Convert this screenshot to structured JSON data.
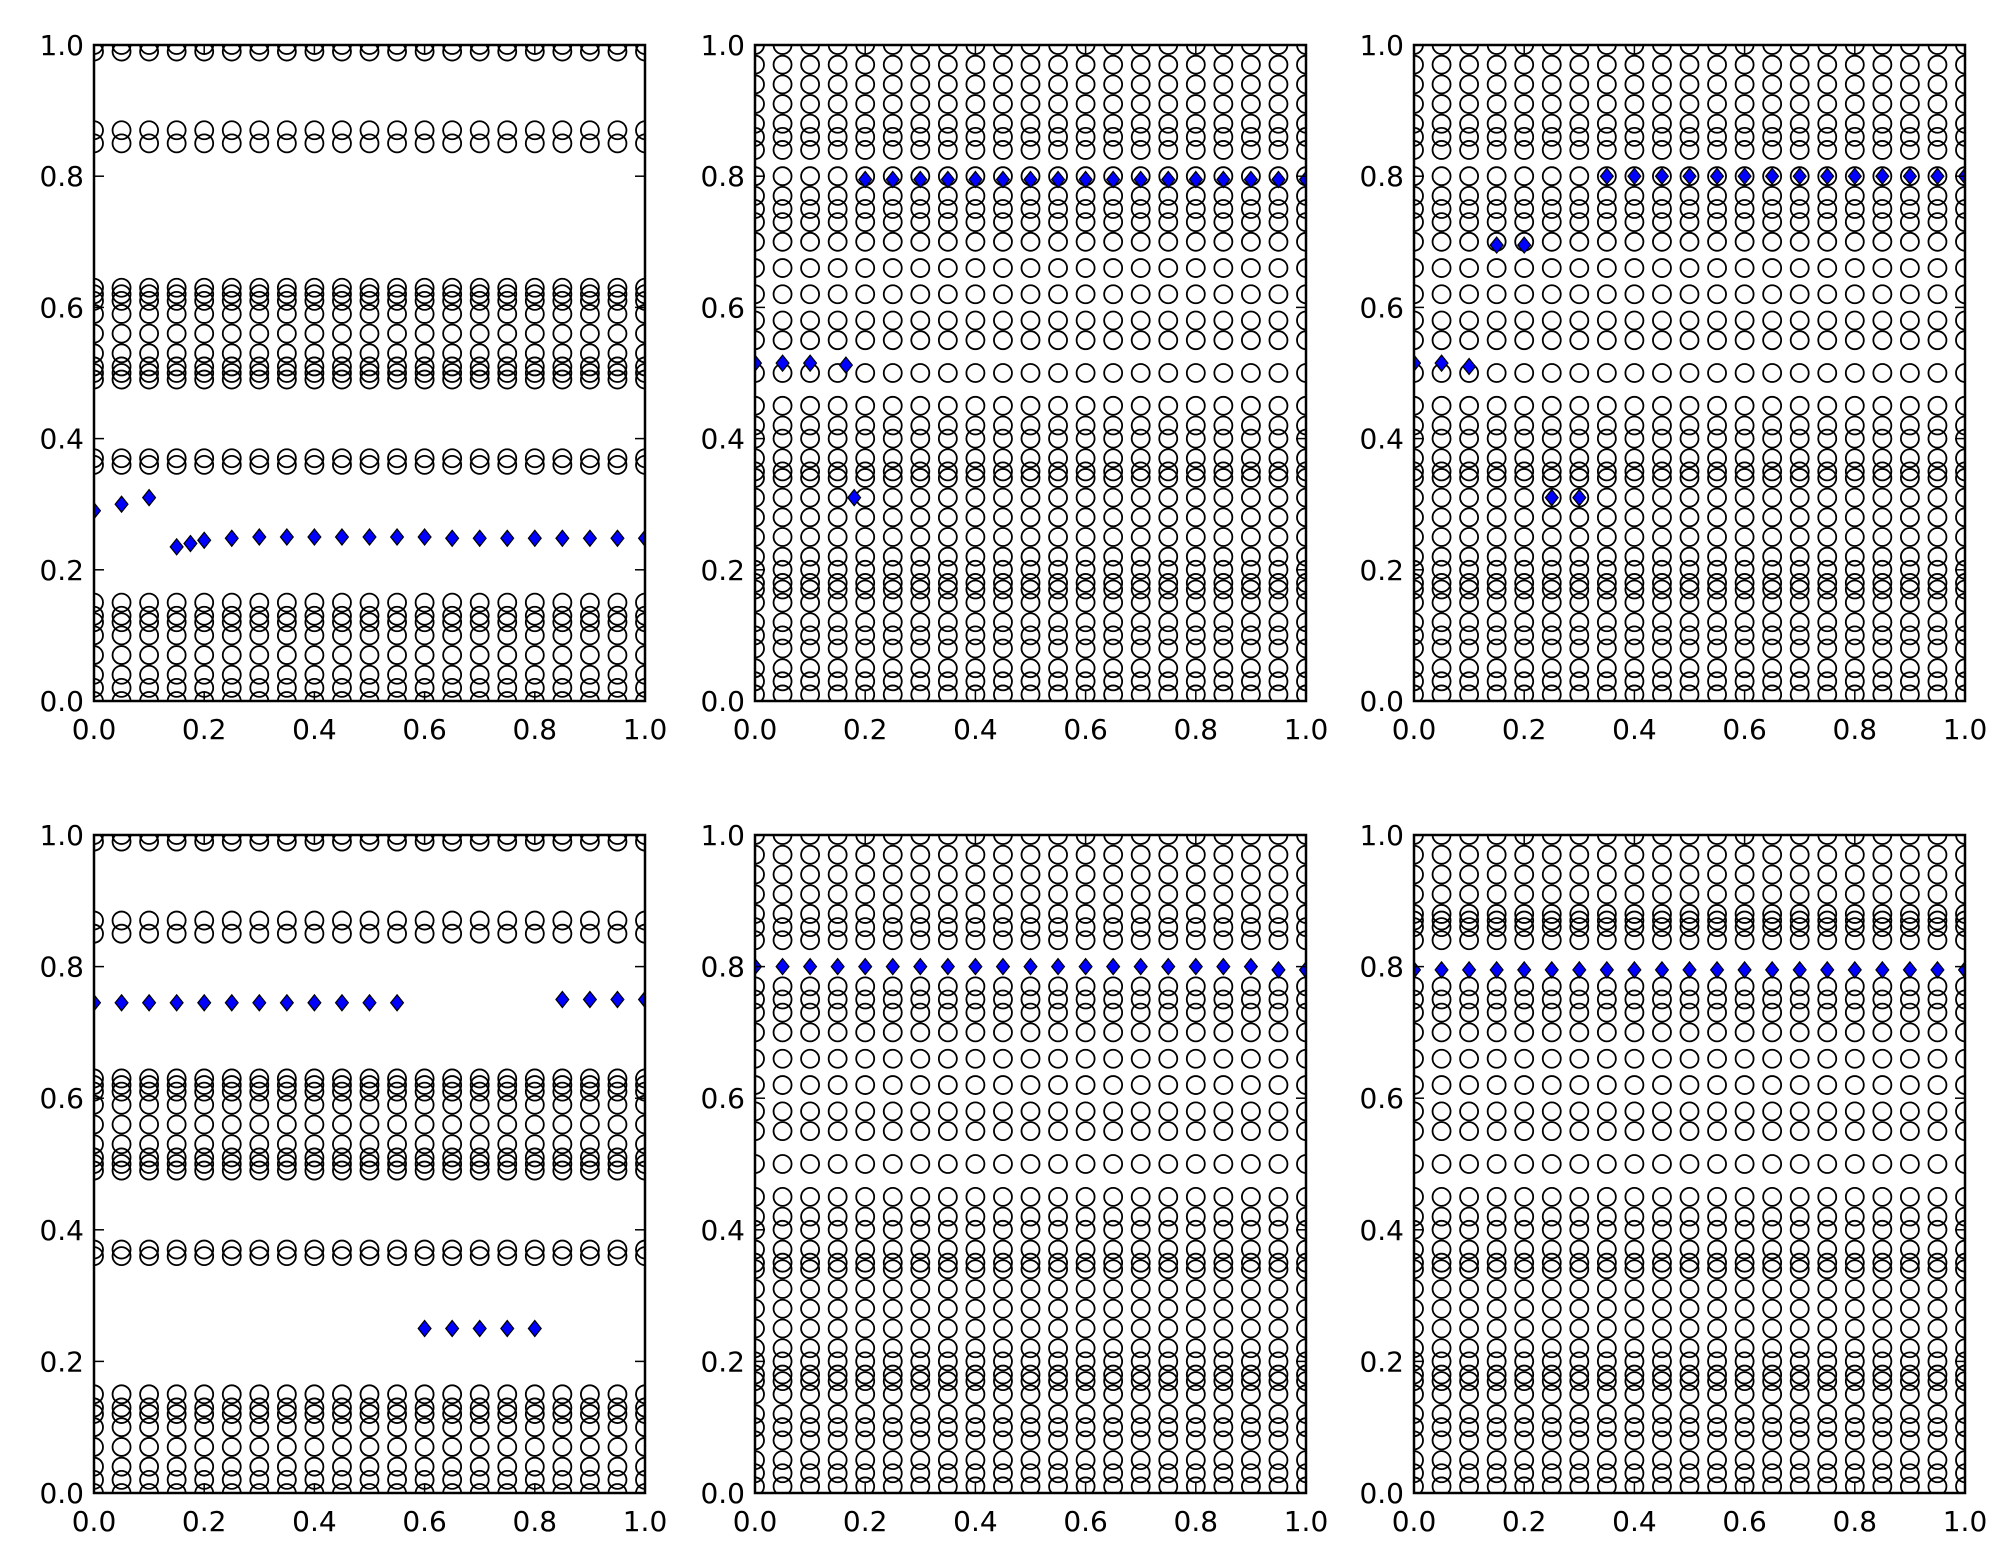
{
  "chart_data": [
    {
      "type": "scatter",
      "circle_color": "#000000",
      "x": [
        0,
        0.05,
        0.1,
        0.15,
        0.2,
        0.25,
        0.3,
        0.35,
        0.4,
        0.45,
        0.5,
        0.55,
        0.6,
        0.65,
        0.7,
        0.75,
        0.8,
        0.85,
        0.9,
        0.95,
        1.0
      ],
      "levels": [
        0.0,
        0.02,
        0.04,
        0.07,
        0.1,
        0.12,
        0.13,
        0.15,
        0.36,
        0.37,
        0.49,
        0.5,
        0.51,
        0.53,
        0.56,
        0.59,
        0.61,
        0.62,
        0.63,
        0.85,
        0.87,
        0.99,
        1.0
      ],
      "markers": {
        "color": "#0000ff",
        "x": [
          0,
          0.05,
          0.1,
          0.15,
          0.175,
          0.2,
          0.25,
          0.3,
          0.35,
          0.4,
          0.45,
          0.5,
          0.55,
          0.6,
          0.65,
          0.7,
          0.75,
          0.8,
          0.85,
          0.9,
          0.95,
          1.0
        ],
        "values": [
          0.29,
          0.3,
          0.31,
          0.235,
          0.24,
          0.245,
          0.248,
          0.25,
          0.25,
          0.25,
          0.25,
          0.25,
          0.25,
          0.25,
          0.248,
          0.248,
          0.248,
          0.248,
          0.248,
          0.248,
          0.248,
          0.248
        ]
      },
      "xlim": [
        0,
        1
      ],
      "ylim": [
        0,
        1
      ],
      "xticks": [
        {
          "value": 0,
          "label": "0.0"
        },
        0.2,
        0.4,
        0.6,
        0.8,
        {
          "value": 1,
          "label": "1.0"
        }
      ],
      "yticks": [
        {
          "value": 0,
          "label": "0.0"
        },
        0.2,
        0.4,
        0.6,
        0.8,
        {
          "value": 1,
          "label": "1.0"
        }
      ]
    },
    {
      "type": "scatter",
      "circle_color": "#000000",
      "x": [
        0,
        0.05,
        0.1,
        0.15,
        0.2,
        0.25,
        0.3,
        0.35,
        0.4,
        0.45,
        0.5,
        0.55,
        0.6,
        0.65,
        0.7,
        0.75,
        0.8,
        0.85,
        0.9,
        0.95,
        1.0
      ],
      "levels": [
        0.01,
        0.03,
        0.05,
        0.08,
        0.1,
        0.12,
        0.15,
        0.17,
        0.18,
        0.2,
        0.22,
        0.25,
        0.28,
        0.31,
        0.34,
        0.35,
        0.37,
        0.4,
        0.42,
        0.45,
        0.5,
        0.55,
        0.58,
        0.62,
        0.66,
        0.7,
        0.73,
        0.75,
        0.77,
        0.8,
        0.84,
        0.86,
        0.88,
        0.91,
        0.94,
        0.97,
        1.0
      ],
      "markers": {
        "color": "#0000ff",
        "x": [
          0,
          0.05,
          0.1,
          0.165,
          0.18,
          0.2,
          0.25,
          0.3,
          0.35,
          0.4,
          0.45,
          0.5,
          0.55,
          0.6,
          0.65,
          0.7,
          0.75,
          0.8,
          0.85,
          0.9,
          0.95,
          1.0
        ],
        "values": [
          0.515,
          0.515,
          0.515,
          0.512,
          0.31,
          0.795,
          0.795,
          0.795,
          0.795,
          0.795,
          0.795,
          0.795,
          0.795,
          0.795,
          0.795,
          0.795,
          0.795,
          0.795,
          0.795,
          0.795,
          0.795,
          0.795
        ]
      },
      "xlim": [
        0,
        1
      ],
      "ylim": [
        0,
        1
      ],
      "xticks": [
        {
          "value": 0,
          "label": "0.0"
        },
        0.2,
        0.4,
        0.6,
        0.8,
        {
          "value": 1,
          "label": "1.0"
        }
      ],
      "yticks": [
        {
          "value": 0,
          "label": "0.0"
        },
        0.2,
        0.4,
        0.6,
        0.8,
        {
          "value": 1,
          "label": "1.0"
        }
      ]
    },
    {
      "type": "scatter",
      "circle_color": "#000000",
      "x": [
        0,
        0.05,
        0.1,
        0.15,
        0.2,
        0.25,
        0.3,
        0.35,
        0.4,
        0.45,
        0.5,
        0.55,
        0.6,
        0.65,
        0.7,
        0.75,
        0.8,
        0.85,
        0.9,
        0.95,
        1.0
      ],
      "levels": [
        0.01,
        0.03,
        0.05,
        0.08,
        0.1,
        0.12,
        0.15,
        0.17,
        0.18,
        0.2,
        0.22,
        0.25,
        0.28,
        0.31,
        0.34,
        0.35,
        0.37,
        0.4,
        0.42,
        0.45,
        0.5,
        0.55,
        0.58,
        0.62,
        0.66,
        0.7,
        0.73,
        0.75,
        0.77,
        0.8,
        0.84,
        0.86,
        0.88,
        0.91,
        0.94,
        0.97,
        1.0
      ],
      "markers": {
        "color": "#0000ff",
        "x": [
          0,
          0.05,
          0.1,
          0.15,
          0.2,
          0.25,
          0.3,
          0.35,
          0.4,
          0.45,
          0.5,
          0.55,
          0.6,
          0.65,
          0.7,
          0.75,
          0.8,
          0.85,
          0.9,
          0.95,
          1.0
        ],
        "values": [
          0.515,
          0.515,
          0.51,
          0.695,
          0.695,
          0.31,
          0.31,
          0.8,
          0.8,
          0.8,
          0.8,
          0.8,
          0.8,
          0.8,
          0.8,
          0.8,
          0.8,
          0.8,
          0.8,
          0.8,
          0.8
        ]
      },
      "xlim": [
        0,
        1
      ],
      "ylim": [
        0,
        1
      ],
      "xticks": [
        {
          "value": 0,
          "label": "0.0"
        },
        0.2,
        0.4,
        0.6,
        0.8,
        {
          "value": 1,
          "label": "1.0"
        }
      ],
      "yticks": [
        {
          "value": 0,
          "label": "0.0"
        },
        0.2,
        0.4,
        0.6,
        0.8,
        {
          "value": 1,
          "label": "1.0"
        }
      ]
    },
    {
      "type": "scatter",
      "circle_color": "#000000",
      "x": [
        0,
        0.05,
        0.1,
        0.15,
        0.2,
        0.25,
        0.3,
        0.35,
        0.4,
        0.45,
        0.5,
        0.55,
        0.6,
        0.65,
        0.7,
        0.75,
        0.8,
        0.85,
        0.9,
        0.95,
        1.0
      ],
      "levels": [
        0.0,
        0.02,
        0.04,
        0.07,
        0.1,
        0.12,
        0.13,
        0.15,
        0.36,
        0.37,
        0.49,
        0.5,
        0.51,
        0.53,
        0.56,
        0.59,
        0.61,
        0.62,
        0.63,
        0.85,
        0.87,
        0.99,
        1.0
      ],
      "markers": {
        "color": "#0000ff",
        "x": [
          0,
          0.05,
          0.1,
          0.15,
          0.2,
          0.25,
          0.3,
          0.35,
          0.4,
          0.45,
          0.5,
          0.55,
          0.6,
          0.65,
          0.7,
          0.75,
          0.8,
          0.85,
          0.9,
          0.95,
          1.0
        ],
        "values": [
          0.745,
          0.745,
          0.745,
          0.745,
          0.745,
          0.745,
          0.745,
          0.745,
          0.745,
          0.745,
          0.745,
          0.745,
          0.25,
          0.25,
          0.25,
          0.25,
          0.25,
          0.75,
          0.75,
          0.75,
          0.75
        ]
      },
      "xlim": [
        0,
        1
      ],
      "ylim": [
        0,
        1
      ],
      "xticks": [
        {
          "value": 0,
          "label": "0.0"
        },
        0.2,
        0.4,
        0.6,
        0.8,
        {
          "value": 1,
          "label": "1.0"
        }
      ],
      "yticks": [
        {
          "value": 0,
          "label": "0.0"
        },
        0.2,
        0.4,
        0.6,
        0.8,
        {
          "value": 1,
          "label": "1.0"
        }
      ]
    },
    {
      "type": "scatter",
      "circle_color": "#000000",
      "x": [
        0,
        0.05,
        0.1,
        0.15,
        0.2,
        0.25,
        0.3,
        0.35,
        0.4,
        0.45,
        0.5,
        0.55,
        0.6,
        0.65,
        0.7,
        0.75,
        0.8,
        0.85,
        0.9,
        0.95,
        1.0
      ],
      "levels": [
        0.01,
        0.03,
        0.05,
        0.08,
        0.1,
        0.12,
        0.15,
        0.17,
        0.18,
        0.2,
        0.22,
        0.25,
        0.28,
        0.31,
        0.34,
        0.35,
        0.37,
        0.4,
        0.42,
        0.45,
        0.5,
        0.55,
        0.58,
        0.62,
        0.66,
        0.7,
        0.73,
        0.75,
        0.77,
        0.84,
        0.86,
        0.88,
        0.91,
        0.94,
        0.97,
        1.0
      ],
      "markers": {
        "color": "#0000ff",
        "x": [
          0,
          0.05,
          0.1,
          0.15,
          0.2,
          0.25,
          0.3,
          0.35,
          0.4,
          0.45,
          0.5,
          0.55,
          0.6,
          0.65,
          0.7,
          0.75,
          0.8,
          0.85,
          0.9,
          0.95,
          1.0
        ],
        "values": [
          0.8,
          0.8,
          0.8,
          0.8,
          0.8,
          0.8,
          0.8,
          0.8,
          0.8,
          0.8,
          0.8,
          0.8,
          0.8,
          0.8,
          0.8,
          0.8,
          0.8,
          0.8,
          0.8,
          0.795,
          0.795
        ]
      },
      "xlim": [
        0,
        1
      ],
      "ylim": [
        0,
        1
      ],
      "xticks": [
        {
          "value": 0,
          "label": "0.0"
        },
        0.2,
        0.4,
        0.6,
        0.8,
        {
          "value": 1,
          "label": "1.0"
        }
      ],
      "yticks": [
        {
          "value": 0,
          "label": "0.0"
        },
        0.2,
        0.4,
        0.6,
        0.8,
        {
          "value": 1,
          "label": "1.0"
        }
      ]
    },
    {
      "type": "scatter",
      "circle_color": "#000000",
      "x": [
        0,
        0.05,
        0.1,
        0.15,
        0.2,
        0.25,
        0.3,
        0.35,
        0.4,
        0.45,
        0.5,
        0.55,
        0.6,
        0.65,
        0.7,
        0.75,
        0.8,
        0.85,
        0.9,
        0.95,
        1.0
      ],
      "levels": [
        0.01,
        0.03,
        0.05,
        0.08,
        0.1,
        0.12,
        0.15,
        0.17,
        0.18,
        0.2,
        0.22,
        0.25,
        0.28,
        0.31,
        0.34,
        0.35,
        0.37,
        0.4,
        0.42,
        0.45,
        0.5,
        0.55,
        0.58,
        0.62,
        0.66,
        0.7,
        0.73,
        0.75,
        0.77,
        0.84,
        0.86,
        0.87,
        0.88,
        0.91,
        0.94,
        0.97,
        1.0
      ],
      "markers": {
        "color": "#0000ff",
        "x": [
          0,
          0.05,
          0.1,
          0.15,
          0.2,
          0.25,
          0.3,
          0.35,
          0.4,
          0.45,
          0.5,
          0.55,
          0.6,
          0.65,
          0.7,
          0.75,
          0.8,
          0.85,
          0.9,
          0.95,
          1.0
        ],
        "values": [
          0.795,
          0.795,
          0.795,
          0.795,
          0.795,
          0.795,
          0.795,
          0.795,
          0.795,
          0.795,
          0.795,
          0.795,
          0.795,
          0.795,
          0.795,
          0.795,
          0.795,
          0.795,
          0.795,
          0.795,
          0.795
        ]
      },
      "xlim": [
        0,
        1
      ],
      "ylim": [
        0,
        1
      ],
      "xticks": [
        {
          "value": 0,
          "label": "0.0"
        },
        0.2,
        0.4,
        0.6,
        0.8,
        {
          "value": 1,
          "label": "1.0"
        }
      ],
      "yticks": [
        {
          "value": 0,
          "label": "0.0"
        },
        0.2,
        0.4,
        0.6,
        0.8,
        {
          "value": 1,
          "label": "1.0"
        }
      ]
    }
  ]
}
